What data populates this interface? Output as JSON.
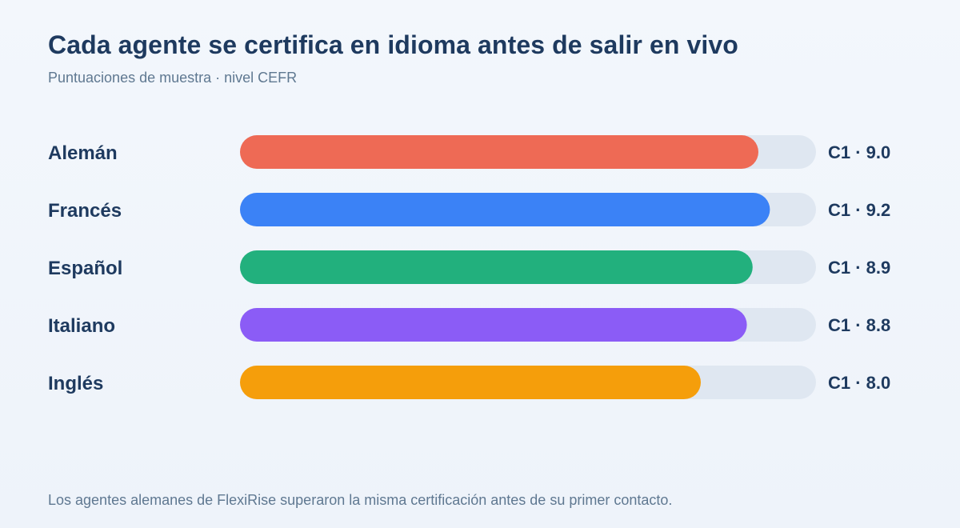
{
  "header": {
    "title": "Cada agente se certifica en idioma antes de salir en vivo",
    "subtitle": "Puntuaciones de muestra · nivel CEFR"
  },
  "footer": {
    "note": "Los agentes alemanes de FlexiRise superaron la misma certificación antes de su primer contacto."
  },
  "colors": {
    "track": "#dfe7f1",
    "label": "#1e3a5f"
  },
  "chart_data": {
    "type": "bar",
    "orientation": "horizontal",
    "categories": [
      "Alemán",
      "Francés",
      "Español",
      "Italiano",
      "Inglés"
    ],
    "values": [
      9.0,
      9.2,
      8.9,
      8.8,
      8.0
    ],
    "value_labels": [
      "C1 · 9.0",
      "C1 · 9.2",
      "C1 · 8.9",
      "C1 · 8.8",
      "C1 · 8.0"
    ],
    "bar_colors": [
      "#ee6a55",
      "#3b82f6",
      "#22b07d",
      "#8b5cf6",
      "#f59e0b"
    ],
    "xlim": [
      0,
      10
    ],
    "grid": false,
    "legend": "none"
  }
}
